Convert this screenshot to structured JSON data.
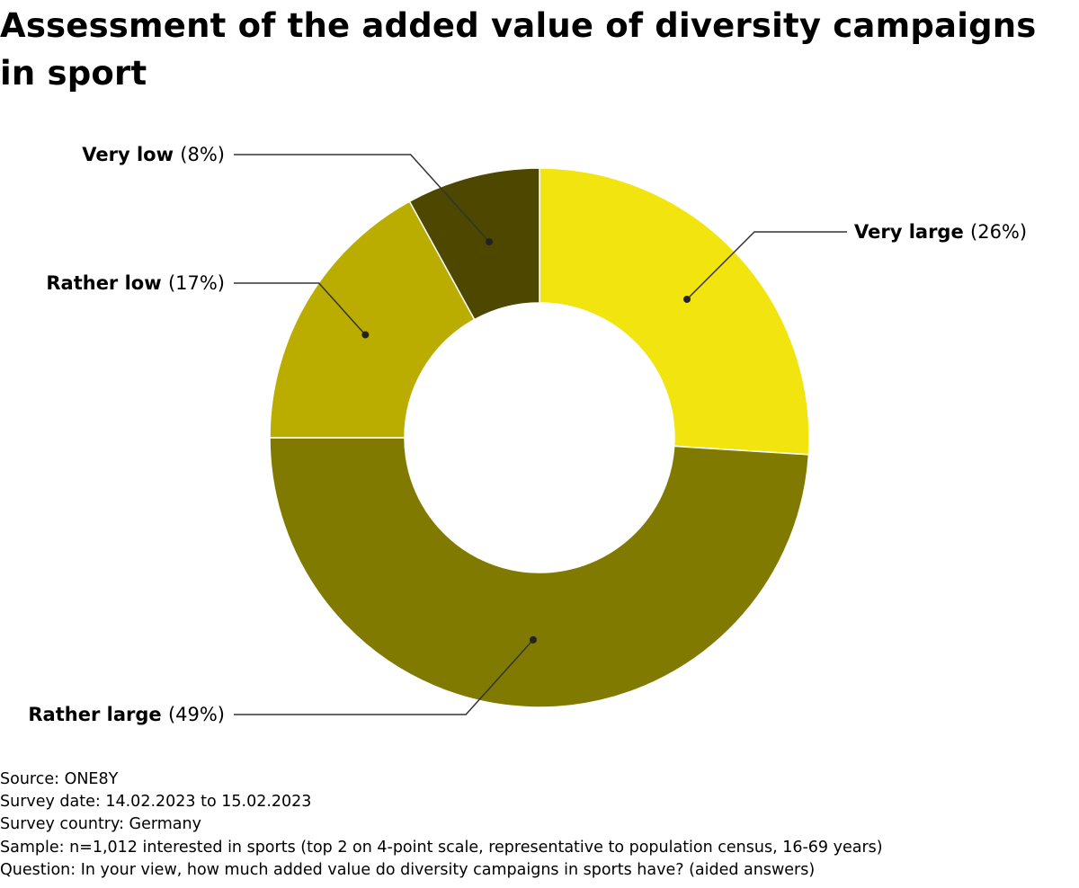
{
  "chart_data": {
    "type": "pie",
    "variant": "donut",
    "title": "Assessment of the added value of diversity campaigns in sport",
    "slices": [
      {
        "label": "Very large",
        "value": 26,
        "value_label": "(26%)",
        "color": "#f2e40e"
      },
      {
        "label": "Rather large",
        "value": 49,
        "value_label": "(49%)",
        "color": "#807a00"
      },
      {
        "label": "Rather low",
        "value": 17,
        "value_label": "(17%)",
        "color": "#bbad00"
      },
      {
        "label": "Very low",
        "value": 8,
        "value_label": "(8%)",
        "color": "#4d4700"
      }
    ],
    "start_angle": "12 o'clock",
    "direction": "clockwise",
    "legend": "none (callout labels)"
  },
  "footer": {
    "source": "Source: ONE8Y",
    "survey_date": "Survey date: 14.02.2023 to 15.02.2023",
    "survey_country": "Survey country: Germany",
    "sample": "Sample: n=1,012 interested in sports (top 2 on 4-point scale, representative to population census, 16-69 years)",
    "question": "Question: In your view, how much added value do diversity campaigns in sports have? (aided answers)"
  },
  "colors": {
    "slice_border": "#ffffff",
    "leader_line": "#333333"
  }
}
